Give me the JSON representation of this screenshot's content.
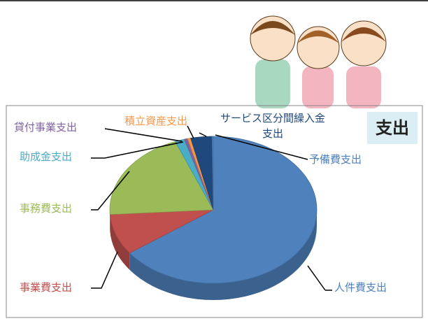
{
  "chart_data": {
    "type": "pie",
    "title": "支出",
    "categories": [
      "人件費支出",
      "事業費支出",
      "事務費支出",
      "助成金支出",
      "貸付事業支出",
      "積立資産支出",
      "サービス区分間繰入金支出",
      "予備費支出"
    ],
    "values": [
      65,
      9,
      20,
      1.5,
      0.5,
      0.5,
      3.3,
      0.2
    ],
    "colors": [
      "#4f81bd",
      "#c0504d",
      "#9bbb59",
      "#4bacc6",
      "#8064a2",
      "#f79646",
      "#1f497d",
      "#4f81bd"
    ]
  }
}
